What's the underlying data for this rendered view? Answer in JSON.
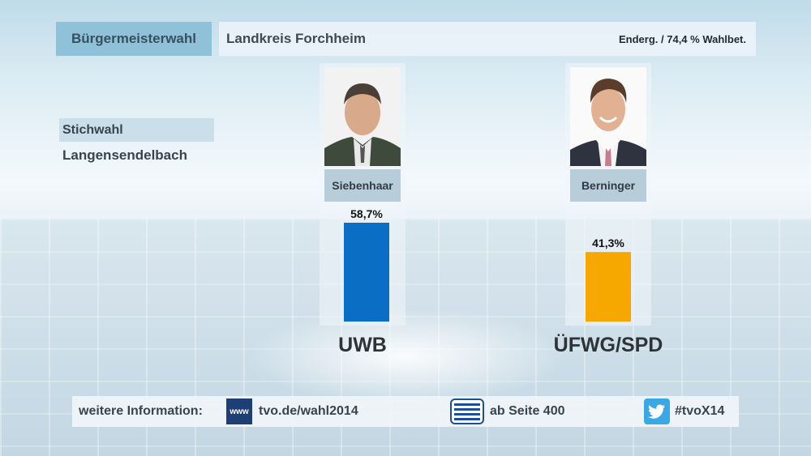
{
  "header": {
    "title": "Bürgermeisterwahl",
    "region": "Landkreis Forchheim",
    "status": "Enderg. / 74,4 % Wahlbet."
  },
  "round": "Stichwahl",
  "place": "Langensendelbach",
  "footer": {
    "label": "weitere Information:",
    "www_icon_text": "www",
    "web": "tvo.de/wahl2014",
    "teletext": "ab Seite 400",
    "twitter": "#tvoX14"
  },
  "colors": {
    "uwb": "#0a6fc4",
    "uefwg_spd": "#f7a800",
    "title_box": "#8fc1d9"
  },
  "chart_data": {
    "type": "bar",
    "categories": [
      "Siebenhaar",
      "Berninger"
    ],
    "parties": [
      "UWB",
      "ÜFWG/SPD"
    ],
    "values": [
      58.7,
      41.3
    ],
    "value_labels": [
      "58,7%",
      "41,3%"
    ],
    "ylim": [
      0,
      70
    ],
    "grid": false
  }
}
